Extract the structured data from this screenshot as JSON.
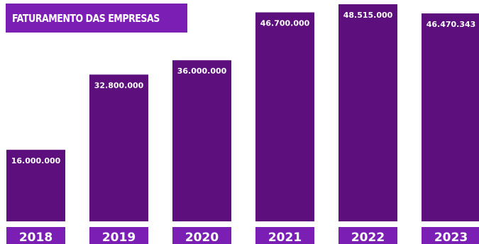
{
  "colors": {
    "bar": "#5c0f7d",
    "year_label_bg": "#7b1fb4",
    "title_bg": "#7b1fb4",
    "text": "#ffffff",
    "background": "#ffffff"
  },
  "chart_data": {
    "type": "bar",
    "title": "FATURAMENTO DAS EMPRESAS",
    "categories": [
      "2018",
      "2019",
      "2020",
      "2021",
      "2022",
      "2023"
    ],
    "values": [
      16000000,
      32800000,
      36000000,
      46700000,
      48515000,
      46470343
    ],
    "value_labels": [
      "16.000.000",
      "32.800.000",
      "36.000.000",
      "46.700.000",
      "48.515.000",
      "46.470.343"
    ],
    "grid": false,
    "legend": "none"
  }
}
